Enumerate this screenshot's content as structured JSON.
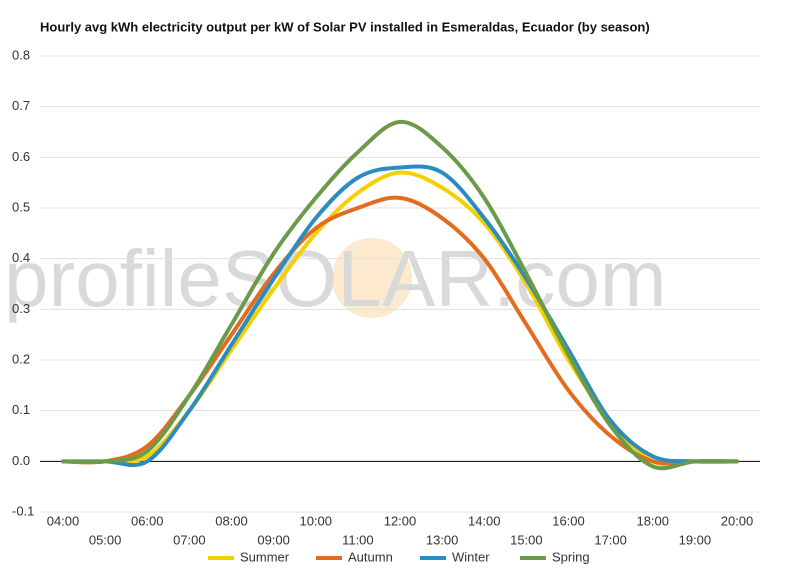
{
  "chart_data": {
    "type": "line",
    "title": "Hourly avg kWh electricity output per kW of Solar PV installed in Esmeraldas, Ecuador (by season)",
    "watermark": "profileSOLAR.com",
    "categories": [
      "04:00",
      "05:00",
      "06:00",
      "07:00",
      "08:00",
      "09:00",
      "10:00",
      "11:00",
      "12:00",
      "13:00",
      "14:00",
      "15:00",
      "16:00",
      "17:00",
      "18:00",
      "19:00",
      "20:00"
    ],
    "series": [
      {
        "name": "Summer",
        "color": "#f5d000",
        "values": [
          0,
          0,
          0.01,
          0.1,
          0.22,
          0.34,
          0.45,
          0.53,
          0.57,
          0.54,
          0.47,
          0.35,
          0.2,
          0.08,
          0,
          0,
          0
        ]
      },
      {
        "name": "Autumn",
        "color": "#e36c1e",
        "values": [
          0,
          0,
          0.03,
          0.13,
          0.25,
          0.37,
          0.46,
          0.5,
          0.52,
          0.48,
          0.4,
          0.27,
          0.14,
          0.05,
          0,
          0,
          0
        ]
      },
      {
        "name": "Winter",
        "color": "#2a8cbf",
        "values": [
          0,
          0,
          0,
          0.1,
          0.23,
          0.36,
          0.48,
          0.56,
          0.58,
          0.57,
          0.48,
          0.36,
          0.22,
          0.08,
          0.01,
          0,
          0
        ]
      },
      {
        "name": "Spring",
        "color": "#6b9a4a",
        "values": [
          0,
          0,
          0.02,
          0.13,
          0.27,
          0.41,
          0.52,
          0.61,
          0.67,
          0.62,
          0.52,
          0.37,
          0.21,
          0.07,
          -0.01,
          0,
          0
        ]
      }
    ],
    "ylim": [
      -0.1,
      0.8
    ],
    "yticks": [
      -0.1,
      {
        "value": 0,
        "label": "0.0"
      },
      0.1,
      0.2,
      0.3,
      0.4,
      0.5,
      0.6,
      0.7,
      0.8
    ],
    "grid": true,
    "legend": "bottom"
  }
}
